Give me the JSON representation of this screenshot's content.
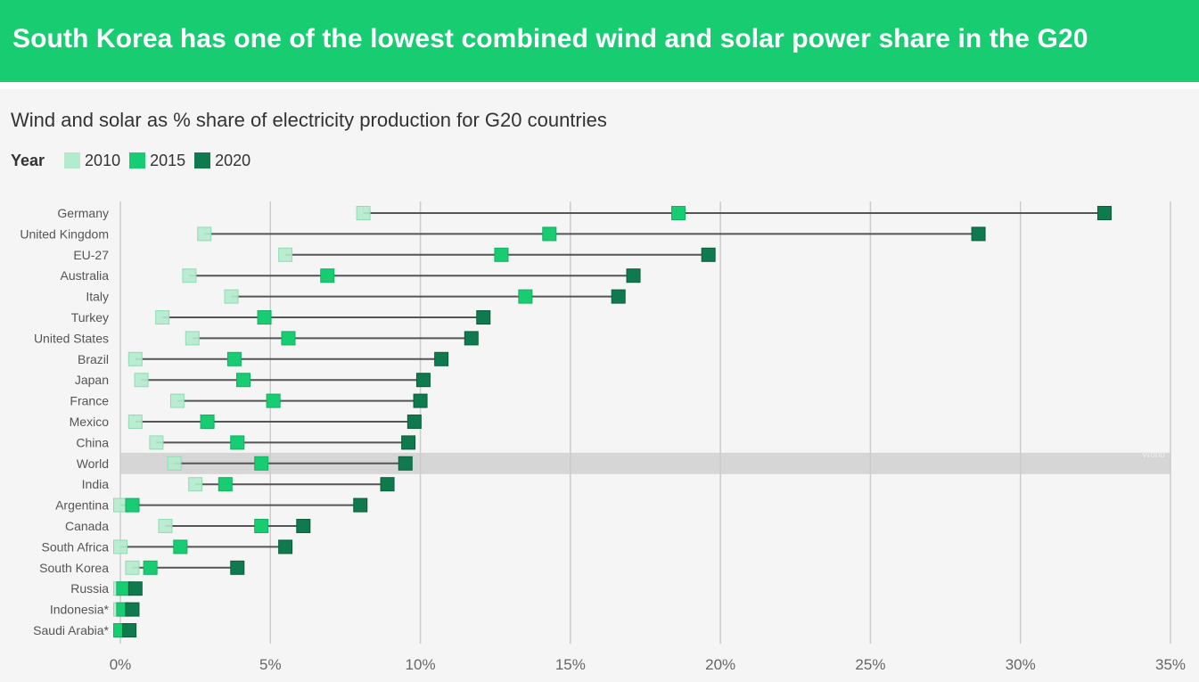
{
  "header": {
    "title": "South Korea has one of the lowest combined wind and solar power share in the G20"
  },
  "subtitle": "Wind and solar as % share of electricity production for G20 countries",
  "legend": {
    "title": "Year",
    "items": [
      {
        "label": "2010",
        "color": "#b3ebcd"
      },
      {
        "label": "2015",
        "color": "#18cc72"
      },
      {
        "label": "2020",
        "color": "#0e7a4e"
      }
    ]
  },
  "colors": {
    "banner": "#18cc72",
    "highlight_band": "#d6d6d6",
    "grid": "#cccccc",
    "arrow": "#555555"
  },
  "chart_data": {
    "type": "scatter",
    "subtype": "arrow-dot-plot",
    "x_unit": "%",
    "xlim": [
      0,
      35
    ],
    "xticks": [
      "0%",
      "5%",
      "10%",
      "15%",
      "20%",
      "25%",
      "30%",
      "35%"
    ],
    "highlight": "World",
    "highlight_label": "World",
    "grid": true,
    "legend_position": "top-left",
    "series": [
      {
        "name": "2010",
        "values": [
          8.1,
          2.8,
          5.5,
          2.3,
          3.7,
          1.4,
          2.4,
          0.5,
          0.7,
          1.9,
          0.5,
          1.2,
          1.8,
          2.5,
          0.0,
          1.5,
          0.0,
          0.4,
          0.0,
          0.0,
          0.0
        ]
      },
      {
        "name": "2015",
        "values": [
          18.6,
          14.3,
          12.7,
          6.9,
          13.5,
          4.8,
          5.6,
          3.8,
          4.1,
          5.1,
          2.9,
          3.9,
          4.7,
          3.5,
          0.4,
          4.7,
          2.0,
          1.0,
          0.1,
          0.1,
          0.0
        ]
      },
      {
        "name": "2020",
        "values": [
          32.8,
          28.6,
          19.6,
          17.1,
          16.6,
          12.1,
          11.7,
          10.7,
          10.1,
          10.0,
          9.8,
          9.6,
          9.5,
          8.9,
          8.0,
          6.1,
          5.5,
          3.9,
          0.5,
          0.4,
          0.3
        ]
      }
    ],
    "categories": [
      "Germany",
      "United Kingdom",
      "EU-27",
      "Australia",
      "Italy",
      "Turkey",
      "United States",
      "Brazil",
      "Japan",
      "France",
      "Mexico",
      "China",
      "World",
      "India",
      "Argentina",
      "Canada",
      "South Africa",
      "South Korea",
      "Russia",
      "Indonesia*",
      "Saudi Arabia*"
    ]
  }
}
